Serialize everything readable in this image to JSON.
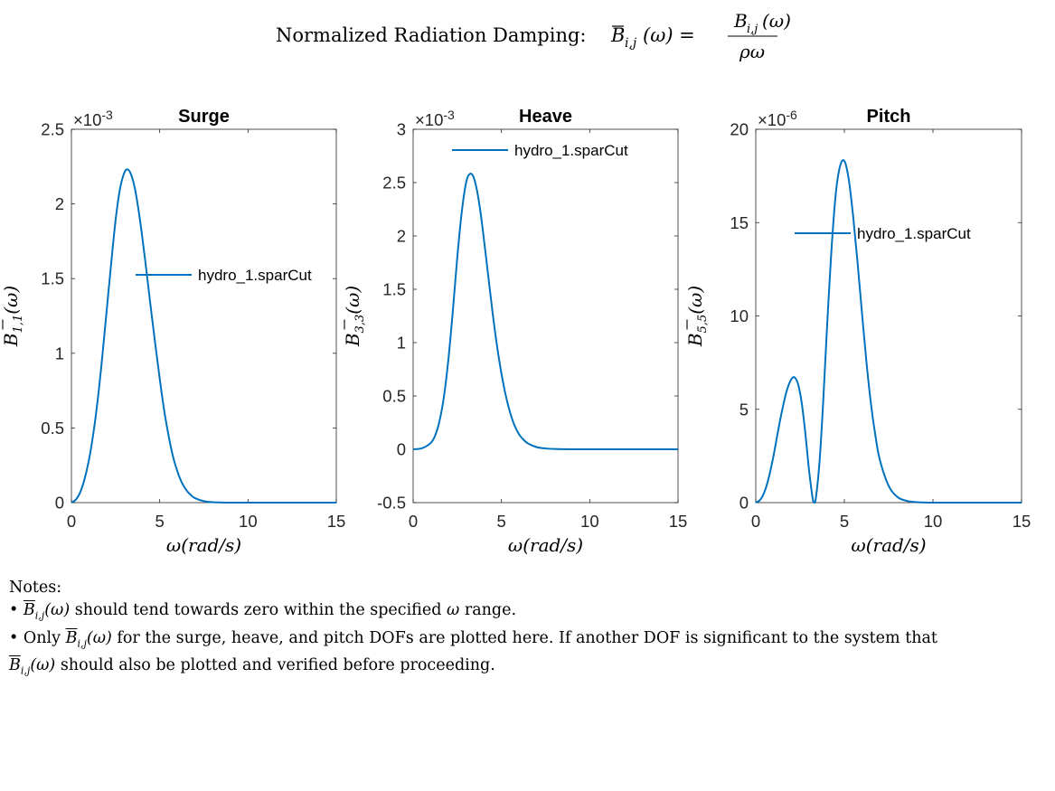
{
  "figure": {
    "title_text": "Normalized Radiation Damping:",
    "title_formula": {
      "lhs": "B",
      "lhs_sub": "i,j",
      "lhs_arg": "(ω) =",
      "numerator": "B",
      "numerator_sub": "i,j",
      "numerator_arg": "(ω)",
      "denominator": "ρω"
    }
  },
  "colors": {
    "series": "#0072BD",
    "axis": "#262626",
    "background": "#ffffff"
  },
  "chart_data": [
    {
      "type": "line",
      "title": "Surge",
      "xlabel": "ω(rad/s)",
      "ylabel": {
        "symbol": "B",
        "sub": "1,1",
        "arg": "(ω)"
      },
      "exponent": {
        "base": "×10",
        "power": "-3"
      },
      "xlim": [
        0,
        15
      ],
      "ylim": [
        0,
        2.5
      ],
      "xticks": [
        "0",
        "5",
        "10",
        "15"
      ],
      "yticks": [
        "0",
        "0.5",
        "1",
        "1.5",
        "2",
        "2.5"
      ],
      "legend": {
        "position": "center-right",
        "entries": [
          "hydro_1.sparCut"
        ]
      },
      "series": [
        {
          "name": "hydro_1.sparCut",
          "x": [
            0,
            0.25,
            0.5,
            0.75,
            1,
            1.25,
            1.5,
            1.75,
            2,
            2.25,
            2.5,
            2.75,
            3,
            3.2,
            3.4,
            3.6,
            3.8,
            4,
            4.25,
            4.5,
            4.75,
            5,
            5.25,
            5.5,
            5.75,
            6,
            6.25,
            6.5,
            6.75,
            7,
            7.5,
            8,
            8.5,
            9,
            10,
            11,
            12,
            13,
            14,
            15
          ],
          "y": [
            0,
            0.02,
            0.07,
            0.16,
            0.29,
            0.47,
            0.7,
            0.98,
            1.29,
            1.6,
            1.89,
            2.1,
            2.21,
            2.23,
            2.19,
            2.1,
            1.96,
            1.79,
            1.55,
            1.3,
            1.06,
            0.83,
            0.62,
            0.45,
            0.31,
            0.21,
            0.135,
            0.085,
            0.052,
            0.03,
            0.01,
            0.003,
            0.001,
            0,
            0,
            0,
            0,
            0,
            0,
            0
          ]
        }
      ]
    },
    {
      "type": "line",
      "title": "Heave",
      "xlabel": "ω(rad/s)",
      "ylabel": {
        "symbol": "B",
        "sub": "3,3",
        "arg": "(ω)"
      },
      "exponent": {
        "base": "×10",
        "power": "-3"
      },
      "xlim": [
        0,
        15
      ],
      "ylim": [
        -0.5,
        3
      ],
      "xticks": [
        "0",
        "5",
        "10",
        "15"
      ],
      "yticks": [
        "-0.5",
        "0",
        "0.5",
        "1",
        "1.5",
        "2",
        "2.5",
        "3"
      ],
      "legend": {
        "position": "top",
        "entries": [
          "hydro_1.sparCut"
        ]
      },
      "series": [
        {
          "name": "hydro_1.sparCut",
          "x": [
            0,
            0.5,
            1,
            1.25,
            1.5,
            1.75,
            2,
            2.25,
            2.5,
            2.75,
            3,
            3.2,
            3.4,
            3.6,
            3.8,
            4,
            4.25,
            4.5,
            4.75,
            5,
            5.25,
            5.5,
            5.75,
            6,
            6.25,
            6.5,
            7,
            7.5,
            8,
            9,
            10,
            11,
            12,
            13,
            14,
            15
          ],
          "y": [
            0,
            0.01,
            0.06,
            0.13,
            0.27,
            0.5,
            0.85,
            1.3,
            1.8,
            2.22,
            2.5,
            2.58,
            2.56,
            2.44,
            2.24,
            1.98,
            1.63,
            1.28,
            0.97,
            0.71,
            0.5,
            0.34,
            0.22,
            0.14,
            0.09,
            0.055,
            0.02,
            0.008,
            0.003,
            0,
            0,
            0,
            0,
            0,
            0,
            0
          ]
        }
      ]
    },
    {
      "type": "line",
      "title": "Pitch",
      "xlabel": "ω(rad/s)",
      "ylabel": {
        "symbol": "B",
        "sub": "5,5",
        "arg": "(ω)"
      },
      "exponent": {
        "base": "×10",
        "power": "-6"
      },
      "xlim": [
        0,
        15
      ],
      "ylim": [
        0,
        20
      ],
      "xticks": [
        "0",
        "5",
        "10",
        "15"
      ],
      "yticks": [
        "0",
        "5",
        "10",
        "15",
        "20"
      ],
      "legend": {
        "position": "center",
        "entries": [
          "hydro_1.sparCut"
        ]
      },
      "series": [
        {
          "name": "hydro_1.sparCut",
          "x": [
            0,
            0.25,
            0.5,
            0.75,
            1,
            1.25,
            1.5,
            1.75,
            2,
            2.2,
            2.4,
            2.6,
            2.8,
            3,
            3.2,
            3.3,
            3.4,
            3.6,
            3.8,
            4,
            4.25,
            4.5,
            4.75,
            5,
            5.25,
            5.5,
            5.75,
            6,
            6.25,
            6.5,
            6.75,
            7,
            7.5,
            8,
            8.5,
            9,
            10,
            11,
            12,
            13,
            14,
            15
          ],
          "y": [
            0,
            0.15,
            0.6,
            1.4,
            2.5,
            3.8,
            5.0,
            6.0,
            6.6,
            6.7,
            6.3,
            5.3,
            3.7,
            1.8,
            0.3,
            0,
            0.3,
            2.2,
            5.3,
            9.0,
            13.2,
            16.4,
            18.0,
            18.3,
            17.3,
            15.3,
            12.8,
            10.1,
            7.5,
            5.3,
            3.6,
            2.3,
            0.9,
            0.3,
            0.1,
            0.03,
            0,
            0,
            0,
            0,
            0,
            0
          ]
        }
      ]
    }
  ],
  "notes": {
    "heading": "Notes:",
    "bullet": "•",
    "b1_symbol": "B",
    "b1_sub": "i,j",
    "b1_arg": "(ω)",
    "b1_text_a": "should tend towards zero within the specified",
    "b1_omega": "ω",
    "b1_text_b": "range.",
    "b2_text_a": "Only",
    "b2_symbol": "B",
    "b2_sub": "i,j",
    "b2_arg": "(ω)",
    "b2_text_b": "for the surge, heave, and pitch DOFs are plotted here. If another DOF is significant to the system that",
    "b2_symbol2": "B",
    "b2_sub2": "i,j",
    "b2_arg2": "(ω)",
    "b2_text_c": "should also be plotted and verified before proceeding."
  }
}
